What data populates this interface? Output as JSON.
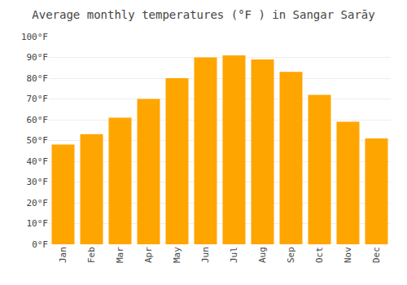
{
  "chart_data": {
    "type": "bar",
    "title": "Average monthly temperatures (°F ) in Sangar Sarāy",
    "categories": [
      "Jan",
      "Feb",
      "Mar",
      "Apr",
      "May",
      "Jun",
      "Jul",
      "Aug",
      "Sep",
      "Oct",
      "Nov",
      "Dec"
    ],
    "values": [
      48,
      53,
      61,
      70,
      80,
      90,
      91,
      89,
      83,
      72,
      59,
      51
    ],
    "color": "#FFA500",
    "ylim": [
      0,
      100
    ],
    "yticks": [
      {
        "value": 0,
        "label": "0°F"
      },
      {
        "value": 10,
        "label": "10°F"
      },
      {
        "value": 20,
        "label": "20°F"
      },
      {
        "value": 30,
        "label": "30°F"
      },
      {
        "value": 40,
        "label": "40°F"
      },
      {
        "value": 50,
        "label": "50°F"
      },
      {
        "value": 60,
        "label": "60°F"
      },
      {
        "value": 70,
        "label": "70°F"
      },
      {
        "value": 80,
        "label": "80°F"
      },
      {
        "value": 90,
        "label": "90°F"
      },
      {
        "value": 100,
        "label": "100°F"
      }
    ],
    "grid": true
  }
}
